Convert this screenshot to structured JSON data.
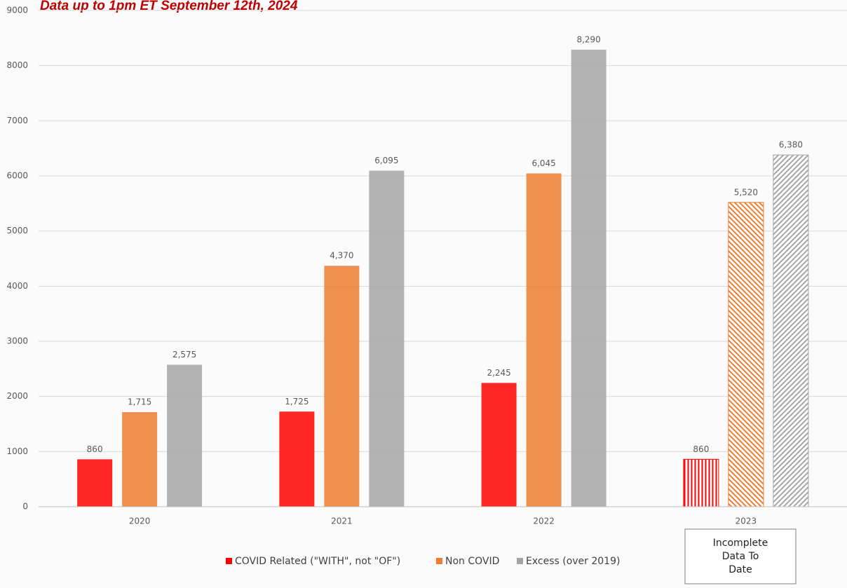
{
  "chart_data": {
    "type": "bar",
    "title": "Data up to 1pm ET September 12th, 2024",
    "categories": [
      "2020",
      "2021",
      "2022",
      "2023"
    ],
    "series": [
      {
        "name": "COVID Related (\"WITH\", not \"OF\")",
        "color": "#ff0000",
        "values": [
          860,
          1725,
          2245,
          860
        ],
        "value_labels": [
          "860",
          "1,725",
          "2,245",
          "860"
        ]
      },
      {
        "name": "Non COVID",
        "color": "#ed7d31",
        "values": [
          1715,
          4370,
          6045,
          5520
        ],
        "value_labels": [
          "1,715",
          "4,370",
          "6,045",
          "5,520"
        ]
      },
      {
        "name": "Excess (over 2019)",
        "color": "#a5a5a5",
        "values": [
          2575,
          6095,
          8290,
          6380
        ],
        "value_labels": [
          "2,575",
          "6,095",
          "8,290",
          "6,380"
        ]
      }
    ],
    "hatched": [
      false,
      false,
      false,
      true
    ],
    "annotation": "Incomplete Data To Date",
    "ylim": [
      0,
      9000
    ],
    "yticks": [
      0,
      1000,
      2000,
      3000,
      4000,
      5000,
      6000,
      7000,
      8000,
      9000
    ],
    "grid": true,
    "legend": "bottom"
  }
}
